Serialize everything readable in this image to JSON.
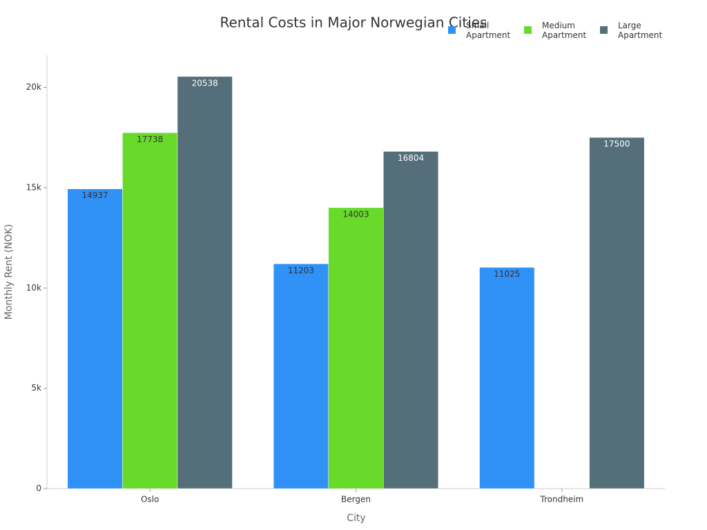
{
  "chart_data": {
    "type": "bar",
    "title": "Rental Costs in Major Norwegian Cities",
    "x_label": "City",
    "y_label": "Monthly Rent (NOK)",
    "categories": [
      "Oslo",
      "Bergen",
      "Trondheim"
    ],
    "series": [
      {
        "name": "Small Apartment",
        "color": "#3091f6",
        "values": [
          14937,
          11203,
          11025
        ]
      },
      {
        "name": "Medium Apartment",
        "color": "#67da2a",
        "values": [
          17738,
          14003,
          null
        ]
      },
      {
        "name": "Large Apartment",
        "color": "#546e7a",
        "values": [
          20538,
          16804,
          17500
        ]
      }
    ],
    "ylim": [
      0,
      21600
    ],
    "yticks": [
      0,
      {
        "value": 5000,
        "label": "5k"
      },
      {
        "value": 10000,
        "label": "10k"
      },
      {
        "value": 15000,
        "label": "15k"
      },
      {
        "value": 20000,
        "label": "20k"
      }
    ],
    "legend": "top-right"
  }
}
